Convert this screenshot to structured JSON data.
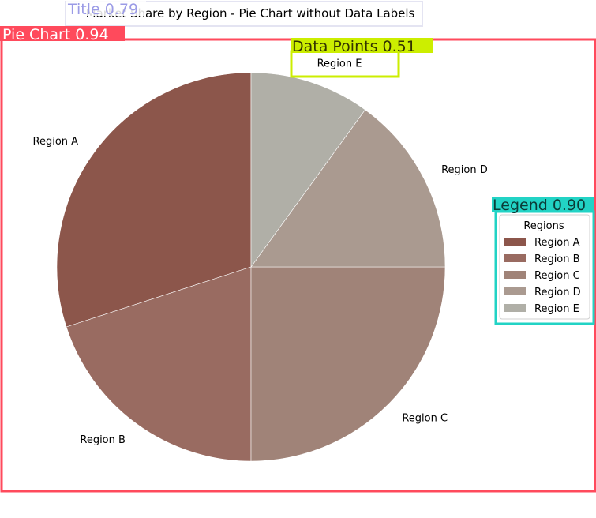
{
  "chart_data": {
    "type": "pie",
    "title": "Market Share by Region - Pie Chart without Data Labels",
    "categories": [
      "Region A",
      "Region B",
      "Region C",
      "Region D",
      "Region E"
    ],
    "values": [
      30,
      20,
      25,
      15,
      10
    ],
    "colors": [
      "#8c564b",
      "#996b61",
      "#a08378",
      "#aa9a90",
      "#b0afa7"
    ],
    "start_angle_deg": 90,
    "direction": "counterclockwise",
    "legend": {
      "title": "Regions",
      "placement": "right"
    }
  },
  "detections": [
    {
      "label": "Title 0.79",
      "color": "#9b9be6"
    },
    {
      "label": "Pie Chart 0.94",
      "color": "#ff4a5c"
    },
    {
      "label": "Data Points 0.51",
      "color": "#ccee00"
    },
    {
      "label": "Legend 0.90",
      "color": "#22d3c5"
    }
  ]
}
